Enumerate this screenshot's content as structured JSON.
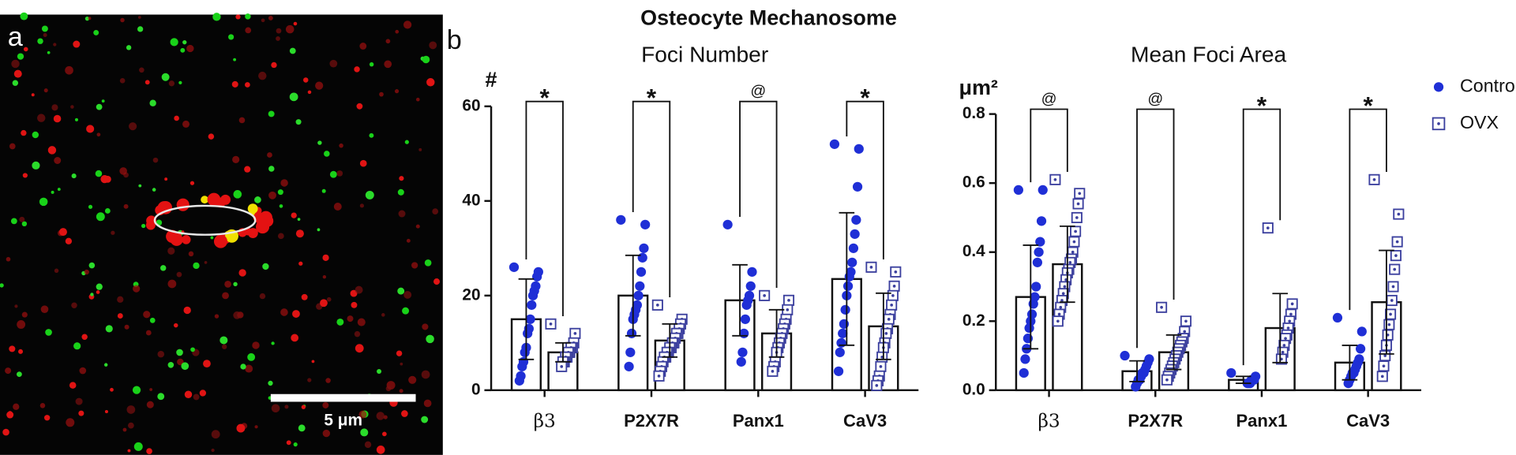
{
  "figure": {
    "title": "Osteocyte Mechanosome",
    "panel_labels": [
      "a",
      "b"
    ],
    "scale_bar": "5 μm"
  },
  "chart_data": [
    {
      "type": "bar",
      "title": "Foci Number",
      "y_label": "#",
      "categories": [
        "β3",
        "P2X7R",
        "Panx1",
        "CaV3"
      ],
      "ylim": [
        0,
        60
      ],
      "yticks": [
        0,
        20,
        40,
        60
      ],
      "significance": [
        "*",
        "*",
        "@",
        "*"
      ],
      "series": [
        {
          "color": "#1f2fd6",
          "marker": "circle",
          "values": [
            15,
            20,
            19,
            23.5
          ],
          "errors": [
            8.5,
            8.5,
            7.5,
            14
          ],
          "points": [
            [
              26,
              25,
              24,
              22,
              21,
              20,
              18,
              15,
              13,
              12,
              9,
              8,
              6,
              5,
              3,
              2
            ],
            [
              36,
              35,
              30,
              28,
              25,
              22,
              20,
              18,
              17,
              16,
              15,
              12,
              8,
              5
            ],
            [
              35,
              25,
              22,
              20,
              19,
              18,
              15,
              12,
              8,
              6
            ],
            [
              52,
              51,
              43,
              36,
              33,
              30,
              27,
              25,
              24,
              22,
              20,
              17,
              14,
              12,
              10,
              8,
              4
            ]
          ]
        },
        {
          "color": "#3b3f9e",
          "marker": "square",
          "values": [
            8,
            10.5,
            12,
            13.5
          ],
          "errors": [
            2,
            3.5,
            5,
            7
          ],
          "points": [
            [
              14,
              12,
              10,
              9,
              9,
              8,
              8,
              7,
              7,
              6,
              6,
              5
            ],
            [
              18,
              15,
              14,
              13,
              12,
              12,
              11,
              10,
              10,
              9,
              9,
              8,
              8,
              7,
              7,
              6,
              5,
              4,
              3
            ],
            [
              20,
              19,
              17,
              15,
              14,
              13,
              12,
              11,
              10,
              9,
              8,
              6,
              5,
              4
            ],
            [
              26,
              25,
              22,
              20,
              18,
              16,
              15,
              13,
              12,
              10,
              9,
              7,
              5,
              3,
              2,
              1
            ]
          ]
        }
      ]
    },
    {
      "type": "bar",
      "title": "Mean Foci Area",
      "y_label": "μm²",
      "categories": [
        "β3",
        "P2X7R",
        "Panx1",
        "CaV3"
      ],
      "ylim": [
        0,
        0.8
      ],
      "yticks": [
        {
          "value": 0,
          "label": "0.0"
        },
        0.2,
        0.4,
        0.6,
        0.8
      ],
      "significance": [
        "@",
        "@",
        "*",
        "*"
      ],
      "legend": "right",
      "series": [
        {
          "name": "Control",
          "color": "#1f2fd6",
          "marker": "circle",
          "values": [
            0.27,
            0.055,
            0.03,
            0.08
          ],
          "errors": [
            0.15,
            0.03,
            0.01,
            0.05
          ],
          "points": [
            [
              0.58,
              0.58,
              0.49,
              0.43,
              0.4,
              0.37,
              0.3,
              0.27,
              0.25,
              0.22,
              0.2,
              0.18,
              0.15,
              0.12,
              0.09,
              0.05
            ],
            [
              0.1,
              0.09,
              0.08,
              0.07,
              0.06,
              0.05,
              0.05,
              0.04,
              0.03,
              0.03,
              0.02,
              0.01
            ],
            [
              0.05,
              0.04,
              0.03,
              0.03,
              0.03,
              0.02,
              0.02,
              0.02
            ],
            [
              0.21,
              0.17,
              0.12,
              0.09,
              0.08,
              0.07,
              0.06,
              0.05,
              0.05,
              0.04,
              0.03,
              0.02
            ]
          ]
        },
        {
          "name": "OVX",
          "color": "#3b3f9e",
          "marker": "square",
          "values": [
            0.365,
            0.11,
            0.18,
            0.255
          ],
          "errors": [
            0.11,
            0.05,
            0.1,
            0.15
          ],
          "points": [
            [
              0.61,
              0.57,
              0.54,
              0.5,
              0.46,
              0.43,
              0.4,
              0.38,
              0.37,
              0.35,
              0.34,
              0.32,
              0.3,
              0.28,
              0.26,
              0.24,
              0.22,
              0.2
            ],
            [
              0.24,
              0.2,
              0.17,
              0.15,
              0.14,
              0.13,
              0.12,
              0.11,
              0.1,
              0.09,
              0.08,
              0.07,
              0.06,
              0.05,
              0.04,
              0.03
            ],
            [
              0.47,
              0.25,
              0.22,
              0.2,
              0.18,
              0.16,
              0.15,
              0.13,
              0.11,
              0.09
            ],
            [
              0.61,
              0.51,
              0.43,
              0.39,
              0.35,
              0.3,
              0.26,
              0.22,
              0.19,
              0.16,
              0.13,
              0.1,
              0.07,
              0.04
            ]
          ]
        }
      ]
    }
  ]
}
